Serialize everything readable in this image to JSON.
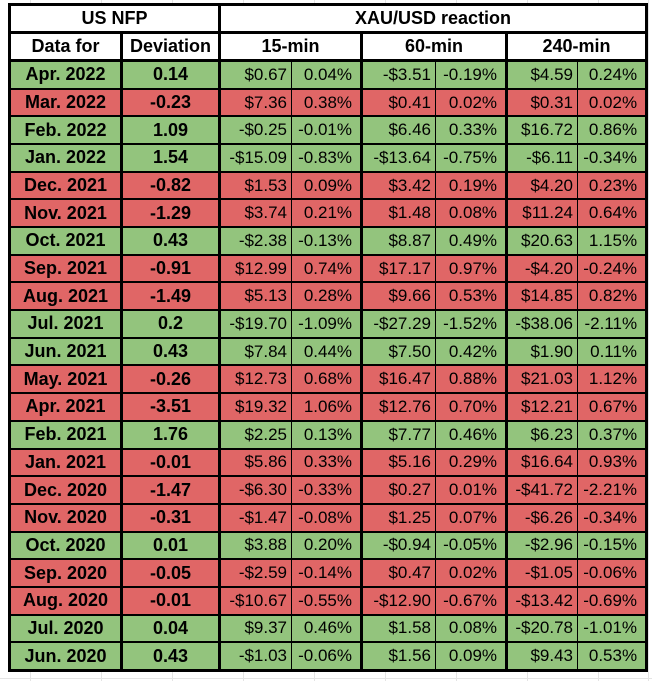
{
  "chart_data": {
    "type": "table",
    "header": {
      "group_left": "US NFP",
      "group_right": "XAU/USD reaction",
      "col_data_for": "Data for",
      "col_deviation": "Deviation",
      "col_15min": "15-min",
      "col_60min": "60-min",
      "col_240min": "240-min"
    },
    "colors": {
      "green": "#93c47d",
      "red": "#e06666",
      "border": "#000000",
      "header_bg": "#ffffff",
      "text": "#000000",
      "gridline": "#e4e4e4"
    },
    "rows": [
      {
        "data_for": "Apr. 2022",
        "deviation": "0.14",
        "color": "green",
        "r15_usd": "$0.67",
        "r15_pct": "0.04%",
        "r60_usd": "-$3.51",
        "r60_pct": "-0.19%",
        "r240_usd": "$4.59",
        "r240_pct": "0.24%"
      },
      {
        "data_for": "Mar. 2022",
        "deviation": "-0.23",
        "color": "red",
        "r15_usd": "$7.36",
        "r15_pct": "0.38%",
        "r60_usd": "$0.41",
        "r60_pct": "0.02%",
        "r240_usd": "$0.31",
        "r240_pct": "0.02%"
      },
      {
        "data_for": "Feb. 2022",
        "deviation": "1.09",
        "color": "green",
        "r15_usd": "-$0.25",
        "r15_pct": "-0.01%",
        "r60_usd": "$6.46",
        "r60_pct": "0.33%",
        "r240_usd": "$16.72",
        "r240_pct": "0.86%"
      },
      {
        "data_for": "Jan. 2022",
        "deviation": "1.54",
        "color": "green",
        "r15_usd": "-$15.09",
        "r15_pct": "-0.83%",
        "r60_usd": "-$13.64",
        "r60_pct": "-0.75%",
        "r240_usd": "-$6.11",
        "r240_pct": "-0.34%"
      },
      {
        "data_for": "Dec. 2021",
        "deviation": "-0.82",
        "color": "red",
        "r15_usd": "$1.53",
        "r15_pct": "0.09%",
        "r60_usd": "$3.42",
        "r60_pct": "0.19%",
        "r240_usd": "$4.20",
        "r240_pct": "0.23%"
      },
      {
        "data_for": "Nov. 2021",
        "deviation": "-1.29",
        "color": "red",
        "r15_usd": "$3.74",
        "r15_pct": "0.21%",
        "r60_usd": "$1.48",
        "r60_pct": "0.08%",
        "r240_usd": "$11.24",
        "r240_pct": "0.64%"
      },
      {
        "data_for": "Oct. 2021",
        "deviation": "0.43",
        "color": "green",
        "r15_usd": "-$2.38",
        "r15_pct": "-0.13%",
        "r60_usd": "$8.87",
        "r60_pct": "0.49%",
        "r240_usd": "$20.63",
        "r240_pct": "1.15%"
      },
      {
        "data_for": "Sep. 2021",
        "deviation": "-0.91",
        "color": "red",
        "r15_usd": "$12.99",
        "r15_pct": "0.74%",
        "r60_usd": "$17.17",
        "r60_pct": "0.97%",
        "r240_usd": "-$4.20",
        "r240_pct": "-0.24%"
      },
      {
        "data_for": "Aug. 2021",
        "deviation": "-1.49",
        "color": "red",
        "r15_usd": "$5.13",
        "r15_pct": "0.28%",
        "r60_usd": "$9.66",
        "r60_pct": "0.53%",
        "r240_usd": "$14.85",
        "r240_pct": "0.82%"
      },
      {
        "data_for": "Jul. 2021",
        "deviation": "0.2",
        "color": "green",
        "r15_usd": "-$19.70",
        "r15_pct": "-1.09%",
        "r60_usd": "-$27.29",
        "r60_pct": "-1.52%",
        "r240_usd": "-$38.06",
        "r240_pct": "-2.11%"
      },
      {
        "data_for": "Jun. 2021",
        "deviation": "0.43",
        "color": "green",
        "r15_usd": "$7.84",
        "r15_pct": "0.44%",
        "r60_usd": "$7.50",
        "r60_pct": "0.42%",
        "r240_usd": "$1.90",
        "r240_pct": "0.11%"
      },
      {
        "data_for": "May. 2021",
        "deviation": "-0.26",
        "color": "red",
        "r15_usd": "$12.73",
        "r15_pct": "0.68%",
        "r60_usd": "$16.47",
        "r60_pct": "0.88%",
        "r240_usd": "$21.03",
        "r240_pct": "1.12%"
      },
      {
        "data_for": "Apr. 2021",
        "deviation": "-3.51",
        "color": "red",
        "r15_usd": "$19.32",
        "r15_pct": "1.06%",
        "r60_usd": "$12.76",
        "r60_pct": "0.70%",
        "r240_usd": "$12.21",
        "r240_pct": "0.67%"
      },
      {
        "data_for": "Feb. 2021",
        "deviation": "1.76",
        "color": "green",
        "r15_usd": "$2.25",
        "r15_pct": "0.13%",
        "r60_usd": "$7.77",
        "r60_pct": "0.46%",
        "r240_usd": "$6.23",
        "r240_pct": "0.37%"
      },
      {
        "data_for": "Jan. 2021",
        "deviation": "-0.01",
        "color": "red",
        "r15_usd": "$5.86",
        "r15_pct": "0.33%",
        "r60_usd": "$5.16",
        "r60_pct": "0.29%",
        "r240_usd": "$16.64",
        "r240_pct": "0.93%"
      },
      {
        "data_for": "Dec. 2020",
        "deviation": "-1.47",
        "color": "red",
        "r15_usd": "-$6.30",
        "r15_pct": "-0.33%",
        "r60_usd": "$0.27",
        "r60_pct": "0.01%",
        "r240_usd": "-$41.72",
        "r240_pct": "-2.21%"
      },
      {
        "data_for": "Nov. 2020",
        "deviation": "-0.31",
        "color": "red",
        "r15_usd": "-$1.47",
        "r15_pct": "-0.08%",
        "r60_usd": "$1.25",
        "r60_pct": "0.07%",
        "r240_usd": "-$6.26",
        "r240_pct": "-0.34%"
      },
      {
        "data_for": "Oct. 2020",
        "deviation": "0.01",
        "color": "green",
        "r15_usd": "$3.88",
        "r15_pct": "0.20%",
        "r60_usd": "-$0.94",
        "r60_pct": "-0.05%",
        "r240_usd": "-$2.96",
        "r240_pct": "-0.15%"
      },
      {
        "data_for": "Sep. 2020",
        "deviation": "-0.05",
        "color": "red",
        "r15_usd": "-$2.59",
        "r15_pct": "-0.14%",
        "r60_usd": "$0.47",
        "r60_pct": "0.02%",
        "r240_usd": "-$1.05",
        "r240_pct": "-0.06%"
      },
      {
        "data_for": "Aug. 2020",
        "deviation": "-0.01",
        "color": "red",
        "r15_usd": "-$10.67",
        "r15_pct": "-0.55%",
        "r60_usd": "-$12.90",
        "r60_pct": "-0.67%",
        "r240_usd": "-$13.42",
        "r240_pct": "-0.69%"
      },
      {
        "data_for": "Jul. 2020",
        "deviation": "0.04",
        "color": "green",
        "r15_usd": "$9.37",
        "r15_pct": "0.46%",
        "r60_usd": "$1.58",
        "r60_pct": "0.08%",
        "r240_usd": "-$20.78",
        "r240_pct": "-1.01%"
      },
      {
        "data_for": "Jun. 2020",
        "deviation": "0.43",
        "color": "green",
        "r15_usd": "-$1.03",
        "r15_pct": "-0.06%",
        "r60_usd": "$1.56",
        "r60_pct": "0.09%",
        "r240_usd": "$9.43",
        "r240_pct": "0.53%"
      }
    ]
  }
}
